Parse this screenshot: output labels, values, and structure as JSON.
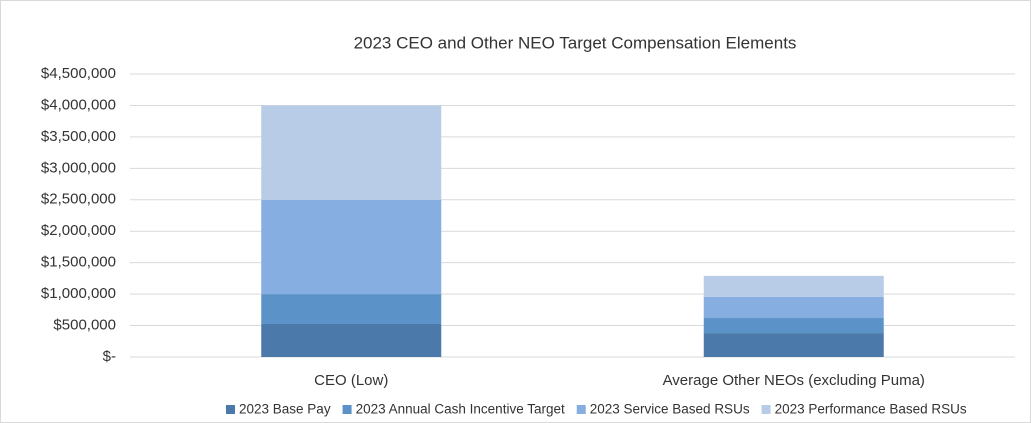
{
  "chart_data": {
    "type": "stacked-bar",
    "title": "2023 CEO and Other NEO Target Compensation Elements",
    "categories": [
      "CEO (Low)",
      "Average Other NEOs (excluding Puma)"
    ],
    "series": [
      {
        "name": "2023 Base Pay",
        "color": "#4b79a9",
        "values": [
          525000,
          380000
        ]
      },
      {
        "name": "2023 Annual Cash Incentive Target",
        "color": "#5b93c9",
        "values": [
          475000,
          240000
        ]
      },
      {
        "name": "2023 Service Based RSUs",
        "color": "#86aee0",
        "values": [
          1500000,
          335000
        ]
      },
      {
        "name": "2023 Performance Based RSUs",
        "color": "#b9cce7",
        "values": [
          1500000,
          335000
        ]
      }
    ],
    "ylim": [
      0,
      4500000
    ],
    "yticks": [
      {
        "value": 0,
        "label": "$-"
      },
      {
        "value": 500000,
        "label": "$500,000"
      },
      {
        "value": 1000000,
        "label": "$1,000,000"
      },
      {
        "value": 1500000,
        "label": "$1,500,000"
      },
      {
        "value": 2000000,
        "label": "$2,000,000"
      },
      {
        "value": 2500000,
        "label": "$2,500,000"
      },
      {
        "value": 3000000,
        "label": "$3,000,000"
      },
      {
        "value": 3500000,
        "label": "$3,500,000"
      },
      {
        "value": 4000000,
        "label": "$4,000,000"
      },
      {
        "value": 4500000,
        "label": "$4,500,000"
      }
    ],
    "grid": true,
    "legend": "bottom"
  }
}
